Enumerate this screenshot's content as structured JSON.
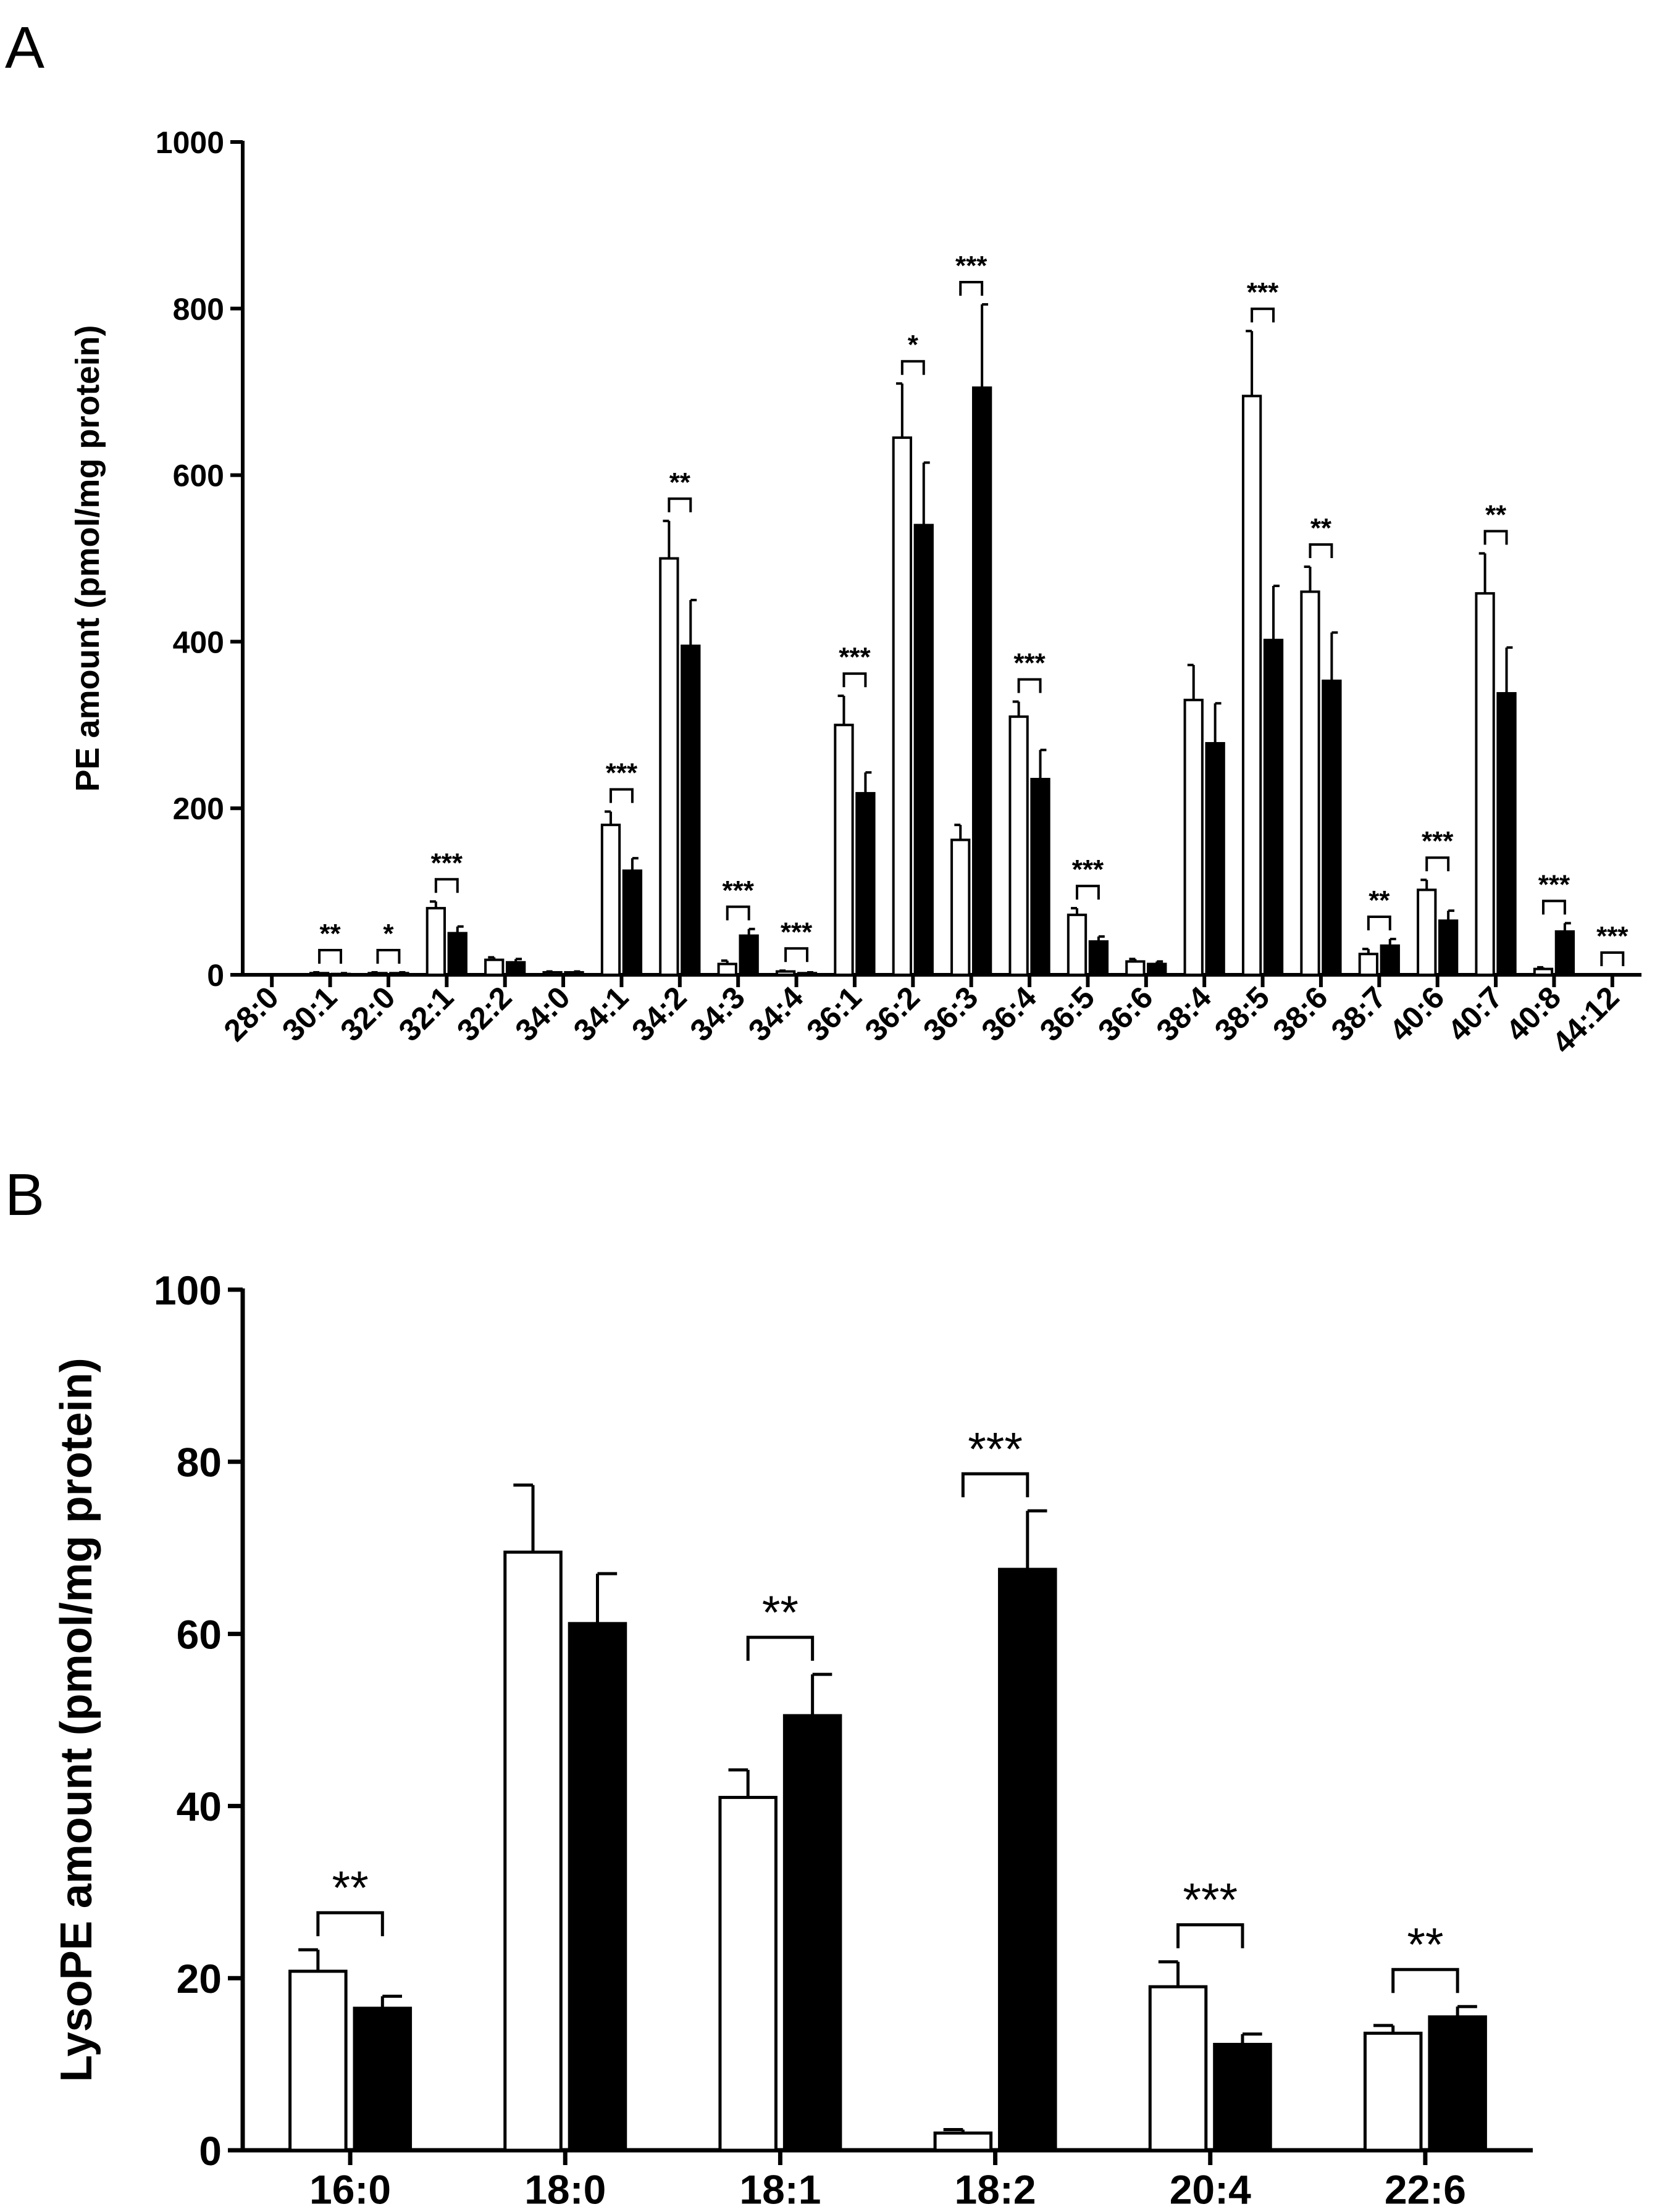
{
  "chart_data": [
    {
      "type": "bar",
      "panel_label": "A",
      "ylabel": "PE amount (pmol/mg protein)",
      "xlabel": "",
      "ylim": [
        0,
        1000
      ],
      "yticks": [
        "0",
        "200",
        "400",
        "600",
        "800",
        "1000"
      ],
      "legend": "none",
      "categories": [
        "28:0",
        "30:1",
        "32:0",
        "32:1",
        "32:2",
        "34:0",
        "34:1",
        "34:2",
        "34:3",
        "34:4",
        "36:1",
        "36:2",
        "36:3",
        "36:4",
        "36:5",
        "36:6",
        "38:4",
        "38:5",
        "38:6",
        "38:7",
        "40:6",
        "40:7",
        "40:8",
        "44:12"
      ],
      "series": [
        {
          "name": "open",
          "fill": "#ffffff",
          "values": [
            0,
            2,
            2,
            80,
            18,
            3,
            180,
            500,
            13,
            4,
            300,
            645,
            162,
            310,
            72,
            16,
            330,
            695,
            460,
            25,
            102,
            458,
            7,
            0
          ],
          "errors": [
            0,
            1,
            1,
            8,
            3,
            1,
            16,
            45,
            4,
            1,
            35,
            65,
            18,
            18,
            8,
            3,
            42,
            78,
            30,
            6,
            12,
            48,
            2,
            0
          ]
        },
        {
          "name": "filled",
          "fill": "#000000",
          "values": [
            0,
            1,
            2,
            50,
            15,
            3,
            125,
            395,
            47,
            2,
            218,
            540,
            705,
            235,
            40,
            13,
            278,
            402,
            353,
            35,
            65,
            338,
            52,
            0
          ],
          "errors": [
            0,
            1,
            1,
            8,
            4,
            1,
            15,
            55,
            8,
            1,
            25,
            75,
            100,
            35,
            6,
            3,
            48,
            65,
            58,
            8,
            12,
            55,
            10,
            0
          ]
        }
      ],
      "significance": [
        {
          "category": "30:1",
          "label": "**"
        },
        {
          "category": "32:0",
          "label": "*"
        },
        {
          "category": "32:1",
          "label": "***"
        },
        {
          "category": "34:1",
          "label": "***"
        },
        {
          "category": "34:2",
          "label": "**"
        },
        {
          "category": "34:3",
          "label": "***"
        },
        {
          "category": "34:4",
          "label": "***"
        },
        {
          "category": "36:1",
          "label": "***"
        },
        {
          "category": "36:2",
          "label": "*"
        },
        {
          "category": "36:3",
          "label": "***"
        },
        {
          "category": "36:4",
          "label": "***"
        },
        {
          "category": "36:5",
          "label": "***"
        },
        {
          "category": "38:5",
          "label": "***"
        },
        {
          "category": "38:6",
          "label": "**"
        },
        {
          "category": "38:7",
          "label": "**"
        },
        {
          "category": "40:6",
          "label": "***"
        },
        {
          "category": "40:7",
          "label": "**"
        },
        {
          "category": "40:8",
          "label": "***"
        },
        {
          "category": "44:12",
          "label": "***"
        }
      ]
    },
    {
      "type": "bar",
      "panel_label": "B",
      "ylabel": "LysoPE amount (pmol/mg protein)",
      "xlabel": "",
      "ylim": [
        0,
        100
      ],
      "yticks": [
        "0",
        "20",
        "40",
        "60",
        "80",
        "100"
      ],
      "legend": "none",
      "categories": [
        "16:0",
        "18:0",
        "18:1",
        "18:2",
        "20:4",
        "22:6"
      ],
      "series": [
        {
          "name": "open",
          "fill": "#ffffff",
          "values": [
            20.8,
            69.5,
            41.0,
            2.0,
            19.0,
            13.6
          ],
          "errors": [
            2.5,
            7.8,
            3.2,
            0.4,
            2.9,
            0.9
          ]
        },
        {
          "name": "filled",
          "fill": "#000000",
          "values": [
            16.5,
            61.2,
            50.5,
            67.5,
            12.3,
            15.5
          ],
          "errors": [
            1.4,
            5.8,
            4.8,
            6.8,
            1.2,
            1.2
          ]
        }
      ],
      "significance": [
        {
          "category": "16:0",
          "label": "**"
        },
        {
          "category": "18:1",
          "label": "**"
        },
        {
          "category": "18:2",
          "label": "***"
        },
        {
          "category": "20:4",
          "label": "***"
        },
        {
          "category": "22:6",
          "label": "**"
        }
      ]
    }
  ]
}
